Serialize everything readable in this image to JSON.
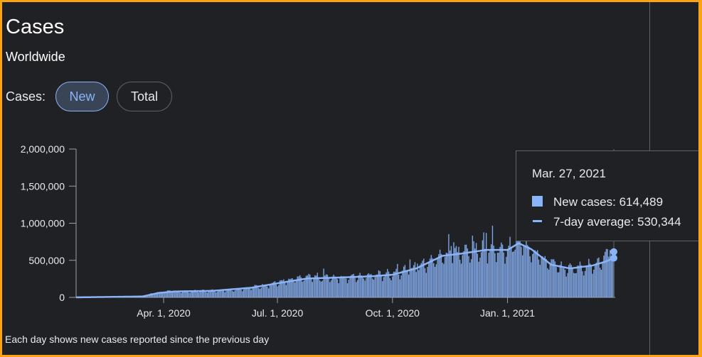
{
  "header": {
    "title": "Cases",
    "subtitle": "Worldwide"
  },
  "toggle": {
    "label": "Cases:",
    "options": [
      "New",
      "Total"
    ],
    "selected": "New"
  },
  "footnote": "Each day shows new cases reported since the previous day",
  "tooltip": {
    "date": "Mar. 27, 2021",
    "new_cases_label": "New cases: 614,489",
    "avg_label": "7-day average: 530,344"
  },
  "colors": {
    "accent": "#8ab4f8",
    "background": "#202124",
    "frame": "#fca311",
    "text": "#e8eaed"
  },
  "chart_data": {
    "type": "bar",
    "title": "Cases",
    "subtitle": "Worldwide",
    "series": [
      {
        "name": "New cases",
        "kind": "bar"
      },
      {
        "name": "7-day average",
        "kind": "line"
      }
    ],
    "x_start": "2020-01-22",
    "x_end": "2021-03-27",
    "x_ticks": [
      "Apr. 1, 2020",
      "Jul. 1, 2020",
      "Oct. 1, 2020",
      "Jan. 1, 2021"
    ],
    "y_ticks": [
      "0",
      "500,000",
      "1,000,000",
      "1,500,000",
      "2,000,000"
    ],
    "y_tick_values": [
      0,
      500000,
      1000000,
      1500000,
      2000000
    ],
    "ylim": [
      0,
      2000000
    ],
    "new_cases_anchors": [
      [
        "2020-01-22",
        500
      ],
      [
        "2020-02-15",
        2000
      ],
      [
        "2020-03-01",
        2500
      ],
      [
        "2020-03-15",
        15000
      ],
      [
        "2020-03-25",
        60000
      ],
      [
        "2020-04-05",
        80000
      ],
      [
        "2020-04-20",
        80000
      ],
      [
        "2020-05-10",
        90000
      ],
      [
        "2020-05-25",
        100000
      ],
      [
        "2020-06-10",
        130000
      ],
      [
        "2020-06-25",
        175000
      ],
      [
        "2020-07-10",
        220000
      ],
      [
        "2020-07-25",
        270000
      ],
      [
        "2020-08-15",
        270000
      ],
      [
        "2020-09-05",
        270000
      ],
      [
        "2020-09-20",
        300000
      ],
      [
        "2020-10-01",
        320000
      ],
      [
        "2020-10-15",
        380000
      ],
      [
        "2020-11-01",
        480000
      ],
      [
        "2020-11-15",
        590000
      ],
      [
        "2020-11-30",
        600000
      ],
      [
        "2020-12-15",
        650000
      ],
      [
        "2020-12-31",
        620000
      ],
      [
        "2021-01-08",
        760000
      ],
      [
        "2021-01-20",
        650000
      ],
      [
        "2021-02-01",
        480000
      ],
      [
        "2021-02-15",
        380000
      ],
      [
        "2021-03-01",
        400000
      ],
      [
        "2021-03-15",
        460000
      ],
      [
        "2021-03-27",
        614489
      ]
    ],
    "avg_anchors": [
      [
        "2020-01-22",
        500
      ],
      [
        "2020-03-15",
        12000
      ],
      [
        "2020-03-28",
        60000
      ],
      [
        "2020-04-10",
        80000
      ],
      [
        "2020-05-10",
        88000
      ],
      [
        "2020-06-10",
        130000
      ],
      [
        "2020-07-10",
        215000
      ],
      [
        "2020-07-25",
        255000
      ],
      [
        "2020-08-15",
        265000
      ],
      [
        "2020-09-15",
        285000
      ],
      [
        "2020-10-01",
        305000
      ],
      [
        "2020-10-20",
        390000
      ],
      [
        "2020-11-10",
        560000
      ],
      [
        "2020-11-25",
        590000
      ],
      [
        "2020-12-15",
        640000
      ],
      [
        "2021-01-01",
        640000
      ],
      [
        "2021-01-10",
        730000
      ],
      [
        "2021-01-20",
        650000
      ],
      [
        "2021-02-05",
        440000
      ],
      [
        "2021-02-20",
        390000
      ],
      [
        "2021-03-10",
        430000
      ],
      [
        "2021-03-20",
        480000
      ],
      [
        "2021-03-27",
        530344
      ]
    ]
  }
}
